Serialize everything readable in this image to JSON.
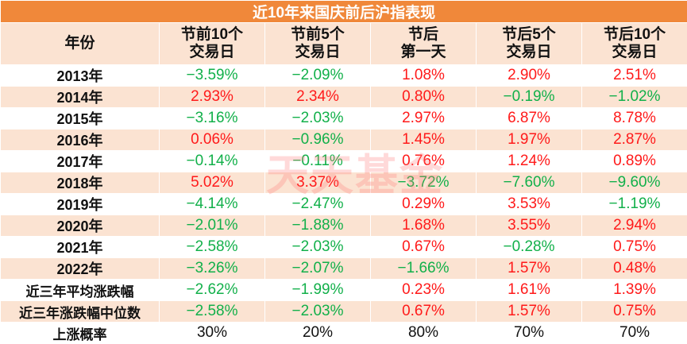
{
  "chart_data": {
    "type": "table",
    "title": "近10年来国庆前后沪指表现",
    "columns": [
      [
        "年份"
      ],
      [
        "节前10个",
        "交易日"
      ],
      [
        "节前5个",
        "交易日"
      ],
      [
        "节后",
        "第一天"
      ],
      [
        "节后5个",
        "交易日"
      ],
      [
        "节后10个",
        "交易日"
      ]
    ],
    "rows": [
      {
        "label": "2013年",
        "values": [
          "−3.59%",
          "−2.09%",
          "1.08%",
          "2.90%",
          "2.51%"
        ],
        "signs": [
          "down",
          "down",
          "up",
          "up",
          "up"
        ]
      },
      {
        "label": "2014年",
        "values": [
          "2.93%",
          "2.34%",
          "0.80%",
          "−0.19%",
          "−1.02%"
        ],
        "signs": [
          "up",
          "up",
          "up",
          "down",
          "down"
        ]
      },
      {
        "label": "2015年",
        "values": [
          "−3.16%",
          "−2.03%",
          "2.97%",
          "6.87%",
          "8.78%"
        ],
        "signs": [
          "down",
          "down",
          "up",
          "up",
          "up"
        ]
      },
      {
        "label": "2016年",
        "values": [
          "0.06%",
          "−0.96%",
          "1.45%",
          "1.97%",
          "2.87%"
        ],
        "signs": [
          "up",
          "down",
          "up",
          "up",
          "up"
        ]
      },
      {
        "label": "2017年",
        "values": [
          "−0.14%",
          "−0.11%",
          "0.76%",
          "1.24%",
          "0.89%"
        ],
        "signs": [
          "down",
          "down",
          "up",
          "up",
          "up"
        ]
      },
      {
        "label": "2018年",
        "values": [
          "5.02%",
          "3.37%",
          "−3.72%",
          "−7.60%",
          "−9.60%"
        ],
        "signs": [
          "up",
          "up",
          "down",
          "down",
          "down"
        ]
      },
      {
        "label": "2019年",
        "values": [
          "−4.14%",
          "−2.47%",
          "0.29%",
          "3.53%",
          "−1.19%"
        ],
        "signs": [
          "down",
          "down",
          "up",
          "up",
          "down"
        ]
      },
      {
        "label": "2020年",
        "values": [
          "−2.01%",
          "−1.88%",
          "1.68%",
          "3.55%",
          "2.94%"
        ],
        "signs": [
          "down",
          "down",
          "up",
          "up",
          "up"
        ]
      },
      {
        "label": "2021年",
        "values": [
          "−2.58%",
          "−2.03%",
          "0.67%",
          "−0.28%",
          "0.75%"
        ],
        "signs": [
          "down",
          "down",
          "up",
          "down",
          "up"
        ]
      },
      {
        "label": "2022年",
        "values": [
          "−3.26%",
          "−2.07%",
          "−1.66%",
          "1.57%",
          "0.48%"
        ],
        "signs": [
          "down",
          "down",
          "down",
          "up",
          "up"
        ]
      },
      {
        "label": "近三年平均涨跌幅",
        "values": [
          "−2.62%",
          "−1.99%",
          "0.23%",
          "1.61%",
          "1.39%"
        ],
        "signs": [
          "down",
          "down",
          "up",
          "up",
          "up"
        ]
      },
      {
        "label": "近三年涨跌幅中位数",
        "values": [
          "−2.58%",
          "−2.03%",
          "0.67%",
          "1.57%",
          "0.75%"
        ],
        "signs": [
          "down",
          "down",
          "up",
          "up",
          "up"
        ]
      },
      {
        "label": "上涨概率",
        "values": [
          "30%",
          "20%",
          "80%",
          "70%",
          "70%"
        ],
        "signs": [
          "neutral",
          "neutral",
          "neutral",
          "neutral",
          "neutral"
        ]
      }
    ],
    "colors": {
      "up": "#ff1a1a",
      "down": "#12b04a",
      "header_bg": "#f0883a",
      "band_bg": "#fbe3d2"
    }
  },
  "watermark": "天天基金"
}
